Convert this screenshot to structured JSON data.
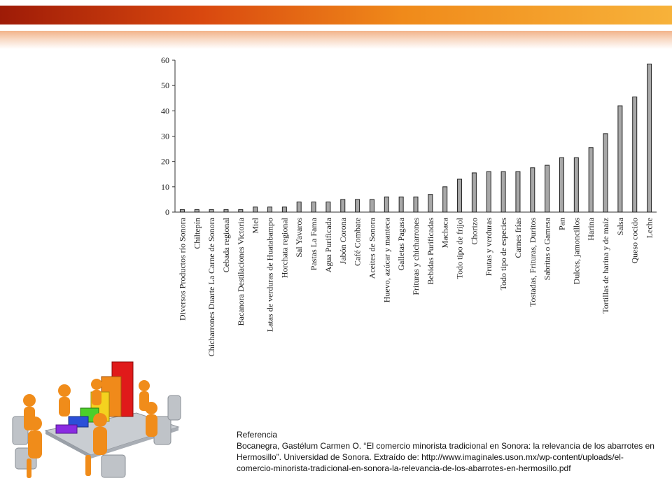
{
  "colors": {
    "bar_fill": "#a8a8a8",
    "bar_stroke": "#222222",
    "band_dark": "#9e1b07",
    "band_light": "#f7b23a"
  },
  "illustration": {
    "icon": "business-meeting-bar-chart-icon"
  },
  "reference": {
    "heading": "Referencia",
    "body": "Bocanegra, Gastélum  Carmen O. “El comercio minorista tradicional en Sonora: la relevancia de los abarrotes en Hermosillo”. Universidad de Sonora. Extraído de: http://www.imaginales.uson.mx/wp-content/uploads/el-comercio-minorista-tradicional-en-sonora-la-relevancia-de-los-abarrotes-en-hermosillo.pdf"
  },
  "chart_data": {
    "type": "bar",
    "categories": [
      "Diversos Productos río Sonora",
      "Chiltepín",
      "Chicharrones Duarte La Carne de Sonora",
      "Cebada regional",
      "Bacanora Destilaciones Victoria",
      "Miel",
      "Latas de verduras de Huatabampo",
      "Horchata regional",
      "Sal Yavaros",
      "Pastas La Fama",
      "Agua Purificada",
      "Jabón Corona",
      "Café Combate",
      "Aceites de Sonora",
      "Huevo, azúcar y manteca",
      "Galletas Pagasa",
      "Frituras y chicharrones",
      "Bebidas Purificadas",
      "Machaca",
      "Todo tipo de frijol",
      "Chorizo",
      "Frutas y verduras",
      "Todo tipo de especies",
      "Carnes frías",
      "Tostadas, Frituras, Duritos",
      "Sabritas o Gamesa",
      "Pan",
      "Dulces, jamoncillos",
      "Harina",
      "Tortillas de harina y de maíz",
      "Salsa",
      "Queso cocido",
      "Leche"
    ],
    "values": [
      1,
      1,
      1,
      1,
      1,
      2,
      2,
      2,
      4,
      4,
      4,
      5,
      5,
      5,
      6,
      6,
      6,
      7,
      10,
      13,
      15.5,
      16,
      16,
      16,
      17.5,
      18.5,
      21.5,
      21.5,
      25.5,
      31,
      42,
      45.5,
      58.5
    ],
    "ylim": [
      0,
      60
    ],
    "yticks": [
      0,
      10,
      20,
      30,
      40,
      50,
      60
    ],
    "grid": false,
    "legend": "none"
  }
}
